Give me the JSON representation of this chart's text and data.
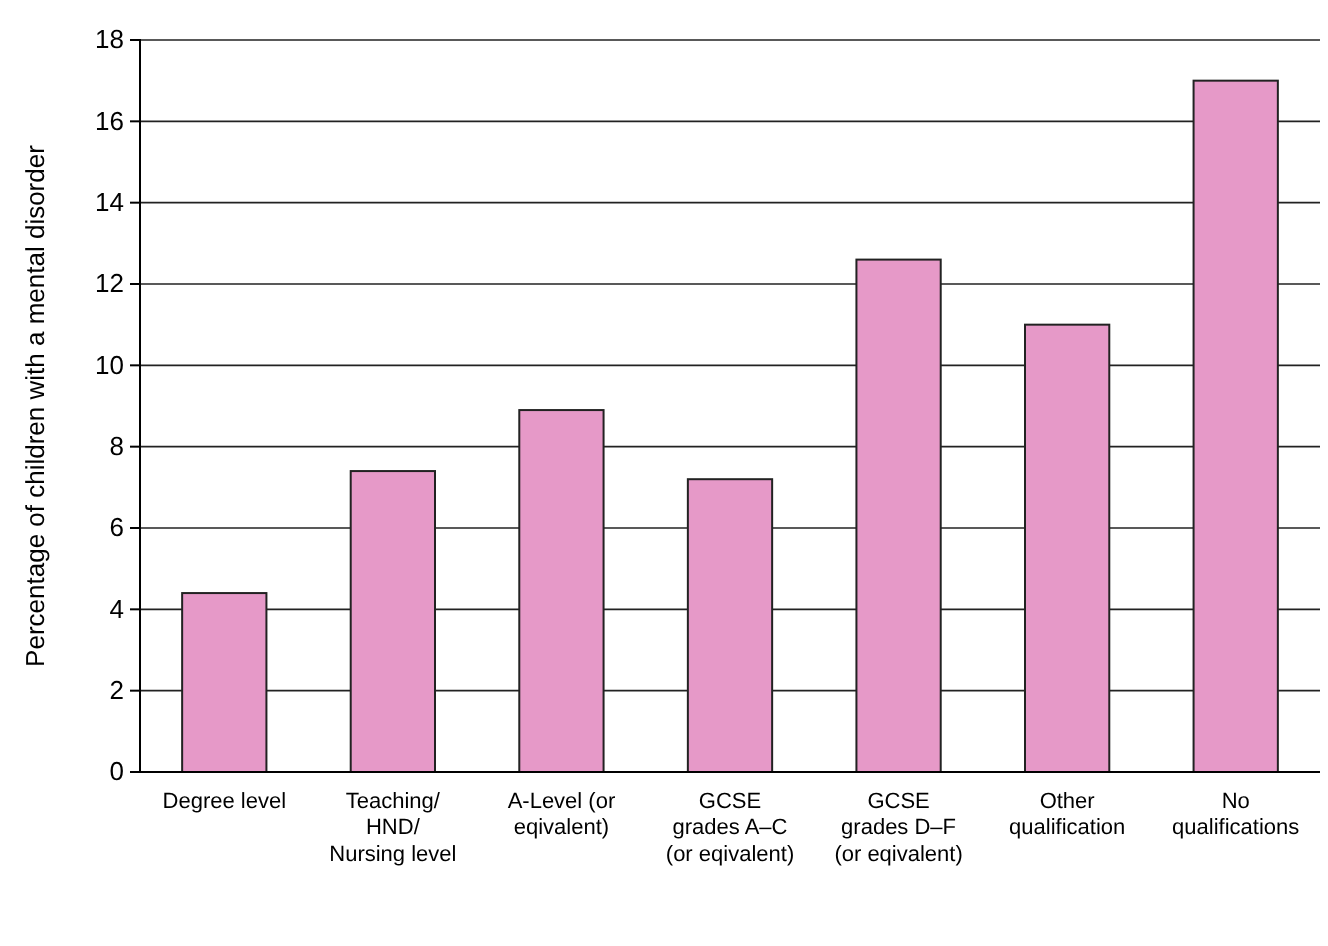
{
  "chart_data": {
    "type": "bar",
    "ylabel": "Percentage of children with a mental disorder",
    "categories": [
      "Degree level",
      "Teaching/ HND/ Nursing level",
      "A-Level (or eqivalent)",
      "GCSE grades A–C (or eqivalent)",
      "GCSE grades D–F (or eqivalent)",
      "Other qualification",
      "No qualifications"
    ],
    "values": [
      4.4,
      7.4,
      8.9,
      7.2,
      12.6,
      11.0,
      17.0
    ],
    "color": "#e699c8",
    "ylim": [
      0,
      18
    ],
    "yticks": [
      0,
      2,
      4,
      6,
      8,
      10,
      12,
      14,
      16,
      18
    ],
    "grid": "y"
  }
}
